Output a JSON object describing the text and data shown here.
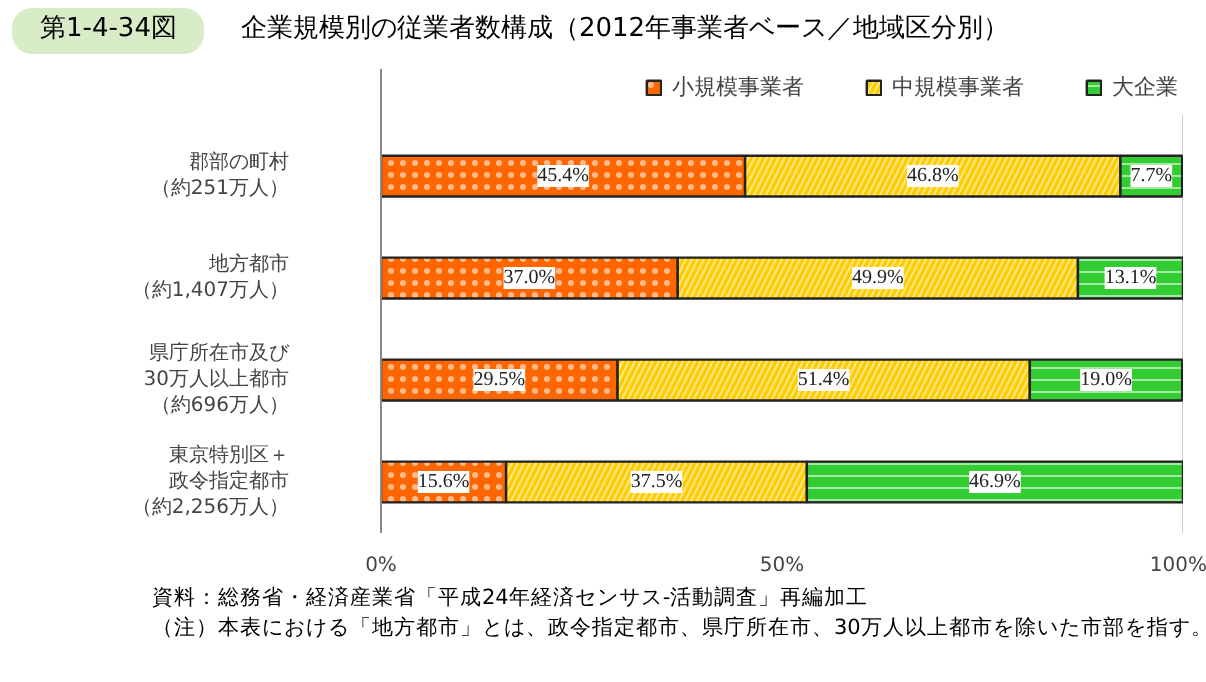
{
  "chart_data": {
    "type": "bar",
    "orientation": "horizontal",
    "stacked": true,
    "title": "企業規模別の従業者数構成（2012年事業者ベース／地域区分別）",
    "categories": [
      "郡部の町村（約251万人）",
      "地方都市（約1,407万人）",
      "県庁所在市及び30万人以上都市（約696万人）",
      "東京特別区＋政令指定都市（約2,256万人）"
    ],
    "series": [
      {
        "name": "小規模事業者",
        "color": "#ff6600",
        "values": [
          45.4,
          37.0,
          29.5,
          15.6
        ]
      },
      {
        "name": "中規模事業者",
        "color": "#ffcc00",
        "values": [
          46.8,
          49.9,
          51.4,
          37.5
        ]
      },
      {
        "name": "大企業",
        "color": "#33cc33",
        "values": [
          7.7,
          13.1,
          19.0,
          46.9
        ]
      }
    ],
    "value_labels": [
      [
        "45.4%",
        "37.0%",
        "29.5%",
        "15.6%"
      ],
      [
        "46.8%",
        "49.9%",
        "51.4%",
        "37.5%"
      ],
      [
        "7.7%",
        "13.1%",
        "19.0%",
        "46.9%"
      ]
    ],
    "xlim": [
      0,
      100
    ],
    "xticks": [
      {
        "value": 0,
        "label": "0%"
      },
      {
        "value": 50,
        "label": "50%"
      },
      {
        "value": 100,
        "label": "100%"
      }
    ],
    "grid": false,
    "legend": "top right",
    "annotations": [
      "第1-4-34図",
      "資料：総務省・経済産業省「平成24年経済センサス‐活動調査」再編加工",
      "（注）本表における「地方都市」とは、政令指定都市、県庁所在市、30万人以上都市を除いた市部を指す。"
    ]
  }
}
